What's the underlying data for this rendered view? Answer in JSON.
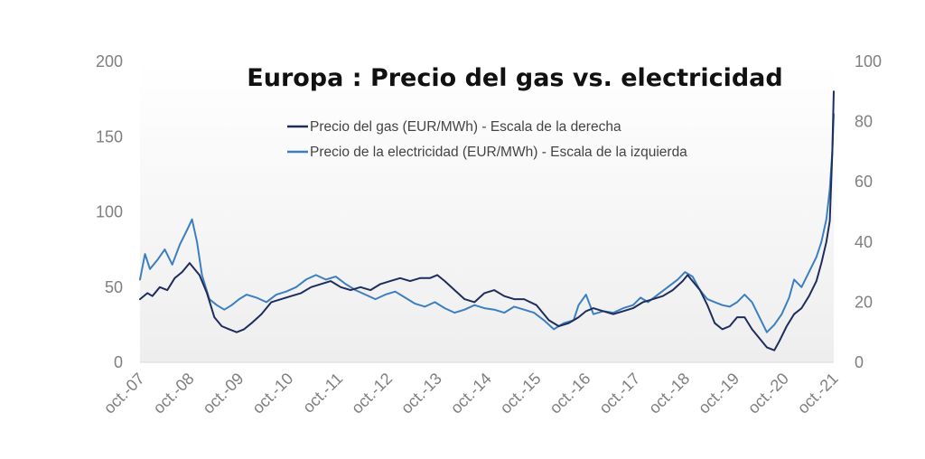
{
  "chart_data": {
    "type": "line",
    "title": "Europa : Precio del gas vs. electricidad",
    "x_tick_labels": [
      "oct.-07",
      "oct.-08",
      "oct.-09",
      "oct.-10",
      "oct.-11",
      "oct.-12",
      "oct.-13",
      "oct.-14",
      "oct.-15",
      "oct.-16",
      "oct.-17",
      "oct.-18",
      "oct.-19",
      "oct.-20",
      "oct.-21"
    ],
    "x_range": [
      2007.75,
      2021.75
    ],
    "y_left": {
      "range": [
        0,
        200
      ],
      "ticks": [
        0,
        50,
        100,
        150,
        200
      ]
    },
    "y_right": {
      "range": [
        0,
        100
      ],
      "ticks": [
        0,
        20,
        40,
        60,
        80,
        100
      ]
    },
    "grid": false,
    "legend_position": "top-center",
    "series": [
      {
        "name": "Precio del gas (EUR/MWh) - Escala de la derecha",
        "axis": "right",
        "color": "#1f2d5c",
        "points": [
          [
            2007.75,
            21
          ],
          [
            2007.9,
            23
          ],
          [
            2008.0,
            22
          ],
          [
            2008.15,
            25
          ],
          [
            2008.3,
            24
          ],
          [
            2008.45,
            28
          ],
          [
            2008.6,
            30
          ],
          [
            2008.75,
            33
          ],
          [
            2008.85,
            31
          ],
          [
            2008.95,
            29
          ],
          [
            2009.1,
            23
          ],
          [
            2009.25,
            15
          ],
          [
            2009.4,
            12
          ],
          [
            2009.55,
            11
          ],
          [
            2009.7,
            10
          ],
          [
            2009.85,
            11
          ],
          [
            2010.0,
            13
          ],
          [
            2010.2,
            16
          ],
          [
            2010.4,
            20
          ],
          [
            2010.6,
            21
          ],
          [
            2010.8,
            22
          ],
          [
            2011.0,
            23
          ],
          [
            2011.2,
            25
          ],
          [
            2011.4,
            26
          ],
          [
            2011.6,
            27
          ],
          [
            2011.8,
            25
          ],
          [
            2012.0,
            24
          ],
          [
            2012.2,
            25
          ],
          [
            2012.4,
            24
          ],
          [
            2012.6,
            26
          ],
          [
            2012.8,
            27
          ],
          [
            2013.0,
            28
          ],
          [
            2013.2,
            27
          ],
          [
            2013.4,
            28
          ],
          [
            2013.6,
            28
          ],
          [
            2013.75,
            29
          ],
          [
            2013.9,
            27
          ],
          [
            2014.1,
            24
          ],
          [
            2014.3,
            21
          ],
          [
            2014.5,
            20
          ],
          [
            2014.7,
            23
          ],
          [
            2014.9,
            24
          ],
          [
            2015.1,
            22
          ],
          [
            2015.3,
            21
          ],
          [
            2015.5,
            21
          ],
          [
            2015.75,
            19
          ],
          [
            2016.0,
            14
          ],
          [
            2016.2,
            12
          ],
          [
            2016.4,
            13
          ],
          [
            2016.6,
            15
          ],
          [
            2016.75,
            17
          ],
          [
            2016.9,
            18
          ],
          [
            2017.1,
            17
          ],
          [
            2017.3,
            16
          ],
          [
            2017.5,
            17
          ],
          [
            2017.7,
            18
          ],
          [
            2017.9,
            20
          ],
          [
            2018.1,
            21
          ],
          [
            2018.3,
            22
          ],
          [
            2018.5,
            24
          ],
          [
            2018.7,
            27
          ],
          [
            2018.8,
            29
          ],
          [
            2018.9,
            27
          ],
          [
            2019.05,
            24
          ],
          [
            2019.2,
            19
          ],
          [
            2019.35,
            13
          ],
          [
            2019.5,
            11
          ],
          [
            2019.65,
            12
          ],
          [
            2019.8,
            15
          ],
          [
            2019.95,
            15
          ],
          [
            2020.1,
            11
          ],
          [
            2020.25,
            8
          ],
          [
            2020.4,
            5
          ],
          [
            2020.55,
            4
          ],
          [
            2020.65,
            7
          ],
          [
            2020.8,
            12
          ],
          [
            2020.95,
            16
          ],
          [
            2021.1,
            18
          ],
          [
            2021.25,
            22
          ],
          [
            2021.4,
            27
          ],
          [
            2021.5,
            33
          ],
          [
            2021.6,
            40
          ],
          [
            2021.67,
            47
          ],
          [
            2021.72,
            70
          ],
          [
            2021.75,
            90
          ]
        ]
      },
      {
        "name": "Precio de la electricidad (EUR/MWh) - Escala de la izquierda",
        "axis": "left",
        "color": "#3c7fc0",
        "points": [
          [
            2007.75,
            55
          ],
          [
            2007.85,
            72
          ],
          [
            2007.95,
            62
          ],
          [
            2008.1,
            68
          ],
          [
            2008.25,
            75
          ],
          [
            2008.4,
            65
          ],
          [
            2008.55,
            78
          ],
          [
            2008.7,
            88
          ],
          [
            2008.8,
            95
          ],
          [
            2008.9,
            80
          ],
          [
            2009.0,
            58
          ],
          [
            2009.15,
            42
          ],
          [
            2009.3,
            38
          ],
          [
            2009.45,
            35
          ],
          [
            2009.6,
            38
          ],
          [
            2009.75,
            42
          ],
          [
            2009.9,
            45
          ],
          [
            2010.1,
            43
          ],
          [
            2010.3,
            40
          ],
          [
            2010.5,
            45
          ],
          [
            2010.7,
            47
          ],
          [
            2010.9,
            50
          ],
          [
            2011.1,
            55
          ],
          [
            2011.3,
            58
          ],
          [
            2011.5,
            55
          ],
          [
            2011.7,
            57
          ],
          [
            2011.9,
            52
          ],
          [
            2012.1,
            48
          ],
          [
            2012.3,
            45
          ],
          [
            2012.5,
            42
          ],
          [
            2012.7,
            45
          ],
          [
            2012.9,
            47
          ],
          [
            2013.1,
            43
          ],
          [
            2013.3,
            39
          ],
          [
            2013.5,
            37
          ],
          [
            2013.7,
            40
          ],
          [
            2013.9,
            36
          ],
          [
            2014.1,
            33
          ],
          [
            2014.3,
            35
          ],
          [
            2014.5,
            38
          ],
          [
            2014.7,
            36
          ],
          [
            2014.9,
            35
          ],
          [
            2015.1,
            33
          ],
          [
            2015.3,
            37
          ],
          [
            2015.5,
            35
          ],
          [
            2015.7,
            33
          ],
          [
            2015.9,
            28
          ],
          [
            2016.1,
            22
          ],
          [
            2016.3,
            26
          ],
          [
            2016.5,
            28
          ],
          [
            2016.6,
            38
          ],
          [
            2016.75,
            45
          ],
          [
            2016.9,
            32
          ],
          [
            2017.1,
            34
          ],
          [
            2017.3,
            33
          ],
          [
            2017.5,
            36
          ],
          [
            2017.7,
            38
          ],
          [
            2017.85,
            43
          ],
          [
            2018.0,
            40
          ],
          [
            2018.2,
            45
          ],
          [
            2018.4,
            50
          ],
          [
            2018.6,
            55
          ],
          [
            2018.75,
            60
          ],
          [
            2018.9,
            57
          ],
          [
            2019.05,
            48
          ],
          [
            2019.2,
            42
          ],
          [
            2019.35,
            40
          ],
          [
            2019.5,
            38
          ],
          [
            2019.65,
            37
          ],
          [
            2019.8,
            40
          ],
          [
            2019.95,
            45
          ],
          [
            2020.1,
            40
          ],
          [
            2020.25,
            30
          ],
          [
            2020.4,
            20
          ],
          [
            2020.55,
            25
          ],
          [
            2020.7,
            32
          ],
          [
            2020.85,
            43
          ],
          [
            2020.95,
            55
          ],
          [
            2021.1,
            50
          ],
          [
            2021.25,
            60
          ],
          [
            2021.4,
            70
          ],
          [
            2021.5,
            80
          ],
          [
            2021.6,
            95
          ],
          [
            2021.67,
            115
          ],
          [
            2021.72,
            140
          ],
          [
            2021.75,
            165
          ]
        ]
      }
    ]
  }
}
